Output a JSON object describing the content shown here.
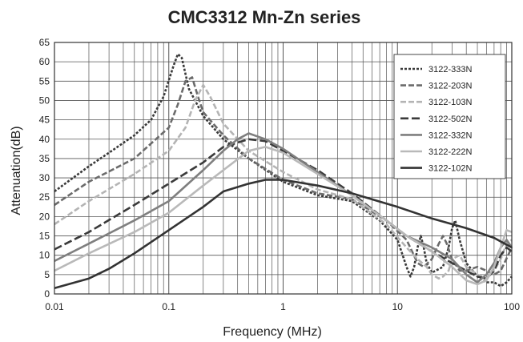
{
  "chart_data": {
    "type": "line",
    "title": "CMC3312 Mn-Zn series",
    "xlabel": "Frequency (MHz)",
    "ylabel": "Attenuation(dB)",
    "x_scale": "log",
    "xlim": [
      0.01,
      100
    ],
    "ylim": [
      0,
      65
    ],
    "x_ticks": [
      {
        "value": 0.01,
        "label": "0.01"
      },
      {
        "value": 0.1,
        "label": "0.1"
      },
      {
        "value": 1,
        "label": "1"
      },
      {
        "value": 10,
        "label": "10"
      },
      {
        "value": 100,
        "label": "100"
      }
    ],
    "y_ticks": [
      0,
      5,
      10,
      15,
      20,
      25,
      30,
      35,
      40,
      45,
      50,
      55,
      60,
      65
    ],
    "grid": true,
    "legend_position": "top-right",
    "series": [
      {
        "name": "3122-333N",
        "color": "#3a3a3a",
        "dash": "short",
        "points": [
          [
            0.01,
            26.5
          ],
          [
            0.02,
            33
          ],
          [
            0.03,
            36.5
          ],
          [
            0.05,
            41
          ],
          [
            0.07,
            45
          ],
          [
            0.09,
            51
          ],
          [
            0.11,
            59
          ],
          [
            0.12,
            62
          ],
          [
            0.13,
            61
          ],
          [
            0.15,
            53
          ],
          [
            0.2,
            46
          ],
          [
            0.3,
            40
          ],
          [
            0.5,
            35
          ],
          [
            1,
            29
          ],
          [
            2,
            25.5
          ],
          [
            4,
            24
          ],
          [
            7,
            19
          ],
          [
            10,
            14
          ],
          [
            12,
            7
          ],
          [
            13,
            4.5
          ],
          [
            14,
            7
          ],
          [
            15,
            12
          ],
          [
            16,
            15
          ],
          [
            17,
            12
          ],
          [
            18,
            8
          ],
          [
            20,
            5.5
          ],
          [
            25,
            7
          ],
          [
            28,
            12
          ],
          [
            30,
            17
          ],
          [
            32,
            19
          ],
          [
            35,
            14
          ],
          [
            40,
            8
          ],
          [
            50,
            4.5
          ],
          [
            60,
            3
          ],
          [
            70,
            3
          ],
          [
            80,
            2
          ],
          [
            90,
            3
          ],
          [
            100,
            4.5
          ]
        ]
      },
      {
        "name": "3122-203N",
        "color": "#6b6b6b",
        "dash": "medium",
        "points": [
          [
            0.01,
            23
          ],
          [
            0.02,
            29
          ],
          [
            0.05,
            35
          ],
          [
            0.1,
            43
          ],
          [
            0.12,
            49
          ],
          [
            0.14,
            55
          ],
          [
            0.16,
            56
          ],
          [
            0.18,
            51
          ],
          [
            0.2,
            47
          ],
          [
            0.3,
            41
          ],
          [
            0.5,
            35
          ],
          [
            1,
            29.5
          ],
          [
            2,
            26
          ],
          [
            4,
            24.5
          ],
          [
            8,
            19
          ],
          [
            12,
            14
          ],
          [
            15,
            8
          ],
          [
            17,
            7
          ],
          [
            20,
            9
          ],
          [
            23,
            13
          ],
          [
            25,
            15
          ],
          [
            27,
            13
          ],
          [
            30,
            9
          ],
          [
            35,
            6
          ],
          [
            40,
            6
          ],
          [
            50,
            7
          ],
          [
            60,
            6
          ],
          [
            70,
            5
          ],
          [
            80,
            6
          ],
          [
            100,
            12
          ]
        ]
      },
      {
        "name": "3122-103N",
        "color": "#b4b4b4",
        "dash": "medium",
        "points": [
          [
            0.01,
            18
          ],
          [
            0.02,
            24
          ],
          [
            0.05,
            31
          ],
          [
            0.1,
            37
          ],
          [
            0.14,
            43
          ],
          [
            0.17,
            50
          ],
          [
            0.2,
            54
          ],
          [
            0.23,
            51
          ],
          [
            0.3,
            44
          ],
          [
            0.5,
            37
          ],
          [
            1,
            31.5
          ],
          [
            2,
            27
          ],
          [
            4,
            24.5
          ],
          [
            8,
            18
          ],
          [
            12,
            12
          ],
          [
            15,
            9
          ],
          [
            18,
            7
          ],
          [
            20,
            5
          ],
          [
            23,
            4
          ],
          [
            25,
            4.5
          ],
          [
            28,
            6
          ],
          [
            30,
            9
          ],
          [
            35,
            10
          ],
          [
            40,
            7
          ],
          [
            50,
            5
          ],
          [
            60,
            4
          ],
          [
            70,
            6
          ],
          [
            80,
            9
          ],
          [
            90,
            13
          ],
          [
            100,
            14
          ]
        ]
      },
      {
        "name": "3122-502N",
        "color": "#3a3a3a",
        "dash": "long",
        "points": [
          [
            0.01,
            11.5
          ],
          [
            0.02,
            16
          ],
          [
            0.05,
            23
          ],
          [
            0.1,
            28.5
          ],
          [
            0.2,
            34
          ],
          [
            0.3,
            38
          ],
          [
            0.5,
            40
          ],
          [
            0.7,
            39.5
          ],
          [
            1,
            37
          ],
          [
            2,
            32
          ],
          [
            4,
            26
          ],
          [
            8,
            19
          ],
          [
            12,
            15
          ],
          [
            20,
            11
          ],
          [
            30,
            8
          ],
          [
            40,
            6
          ],
          [
            50,
            4.5
          ],
          [
            60,
            4
          ],
          [
            70,
            6
          ],
          [
            80,
            10
          ],
          [
            90,
            12
          ],
          [
            100,
            11
          ]
        ]
      },
      {
        "name": "3122-332N",
        "color": "#7f7f7f",
        "dash": "solid",
        "points": [
          [
            0.01,
            8.5
          ],
          [
            0.02,
            13
          ],
          [
            0.05,
            19
          ],
          [
            0.1,
            24
          ],
          [
            0.2,
            32
          ],
          [
            0.3,
            37
          ],
          [
            0.4,
            40
          ],
          [
            0.5,
            41.5
          ],
          [
            0.7,
            40
          ],
          [
            1,
            37.5
          ],
          [
            2,
            31.5
          ],
          [
            4,
            25.5
          ],
          [
            8,
            19
          ],
          [
            12,
            15
          ],
          [
            20,
            12
          ],
          [
            30,
            9
          ],
          [
            40,
            5
          ],
          [
            50,
            3
          ],
          [
            60,
            5
          ],
          [
            70,
            8
          ],
          [
            80,
            12
          ],
          [
            90,
            14
          ],
          [
            100,
            12
          ]
        ]
      },
      {
        "name": "3122-222N",
        "color": "#b9b9b9",
        "dash": "solid",
        "points": [
          [
            0.01,
            6
          ],
          [
            0.02,
            10.5
          ],
          [
            0.05,
            16
          ],
          [
            0.1,
            21
          ],
          [
            0.2,
            28
          ],
          [
            0.3,
            32
          ],
          [
            0.5,
            37
          ],
          [
            0.7,
            38
          ],
          [
            1,
            36.5
          ],
          [
            2,
            31
          ],
          [
            4,
            25.5
          ],
          [
            8,
            19
          ],
          [
            12,
            15
          ],
          [
            20,
            11
          ],
          [
            30,
            7
          ],
          [
            40,
            3.5
          ],
          [
            50,
            2.5
          ],
          [
            60,
            3.5
          ],
          [
            70,
            7
          ],
          [
            80,
            12
          ],
          [
            90,
            16.5
          ],
          [
            100,
            16
          ]
        ]
      },
      {
        "name": "3122-102N",
        "color": "#333333",
        "dash": "solid",
        "points": [
          [
            0.01,
            1.5
          ],
          [
            0.02,
            4
          ],
          [
            0.03,
            6.5
          ],
          [
            0.05,
            10.5
          ],
          [
            0.1,
            16.5
          ],
          [
            0.2,
            22.5
          ],
          [
            0.3,
            26.5
          ],
          [
            0.5,
            28.5
          ],
          [
            0.7,
            29.5
          ],
          [
            1,
            29.5
          ],
          [
            2,
            28
          ],
          [
            4,
            26
          ],
          [
            10,
            22.5
          ],
          [
            20,
            19.5
          ],
          [
            40,
            17
          ],
          [
            70,
            14.5
          ],
          [
            100,
            12
          ]
        ]
      }
    ]
  }
}
